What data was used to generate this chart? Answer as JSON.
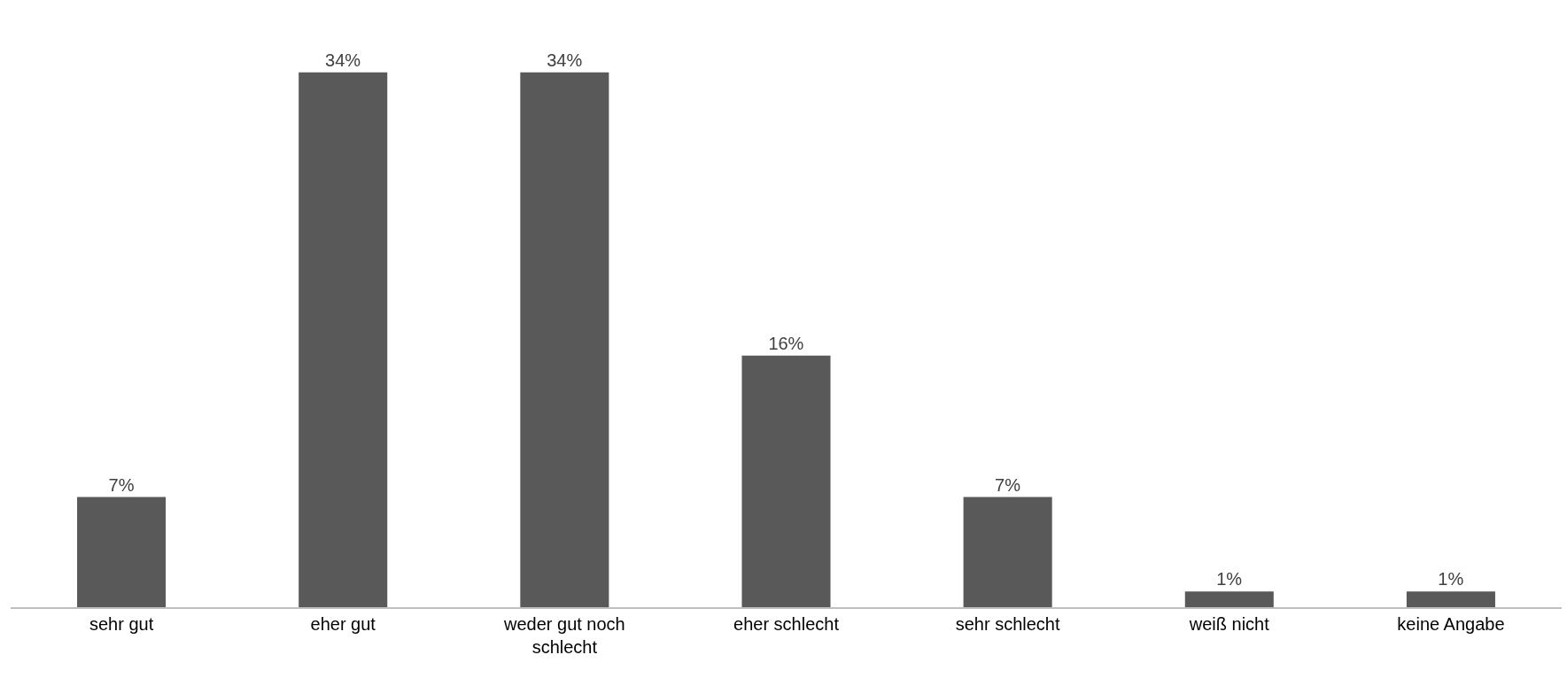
{
  "chart_data": {
    "type": "bar",
    "categories": [
      "sehr gut",
      "eher gut",
      "weder gut noch schlecht",
      "eher schlecht",
      "sehr schlecht",
      "weiß nicht",
      "keine Angabe"
    ],
    "values": [
      7,
      34,
      34,
      16,
      7,
      1,
      1
    ],
    "value_labels": [
      "7%",
      "34%",
      "34%",
      "16%",
      "7%",
      "1%",
      "1%"
    ],
    "color": "#595959",
    "tick_labels": "x"
  }
}
